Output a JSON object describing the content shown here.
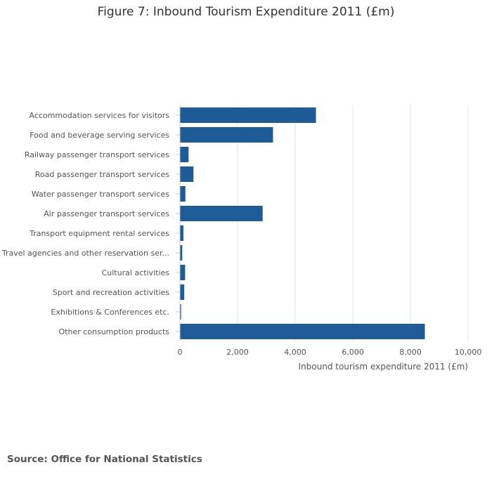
{
  "title": "Figure 7: Inbound Tourism Expenditure 2011 (£m)",
  "source": "Source: Office for National Statistics",
  "colors": {
    "bar": "#1f5b96",
    "grid": "#e6e6e6",
    "axis": "#cccccc",
    "text": "#555555"
  },
  "chart_data": {
    "type": "bar",
    "orientation": "horizontal",
    "title": "Figure 7: Inbound Tourism Expenditure 2011 (£m)",
    "xlabel": "Inbound tourism expenditure 2011 (£m)",
    "ylabel": "",
    "xlim": [
      0,
      10000
    ],
    "xticks": [
      0,
      2000,
      4000,
      6000,
      8000,
      10000
    ],
    "xtick_labels": [
      "0",
      "2,000",
      "4,000",
      "6,000",
      "8,000",
      "10,000"
    ],
    "grid": true,
    "categories": [
      "Accommodation services for visitors",
      "Food and beverage serving services",
      "Railway passenger transport services",
      "Road passenger transport services",
      "Water passenger transport services",
      "Air passenger transport services",
      "Transport equipment rental services",
      "Travel agencies and other reservation ser...",
      "Cultural activities",
      "Sport and recreation activities",
      "Exhibitions & Conferences etc.",
      "Other consumption products"
    ],
    "values": [
      4720,
      3230,
      300,
      470,
      190,
      2870,
      120,
      80,
      180,
      150,
      40,
      8500
    ]
  }
}
